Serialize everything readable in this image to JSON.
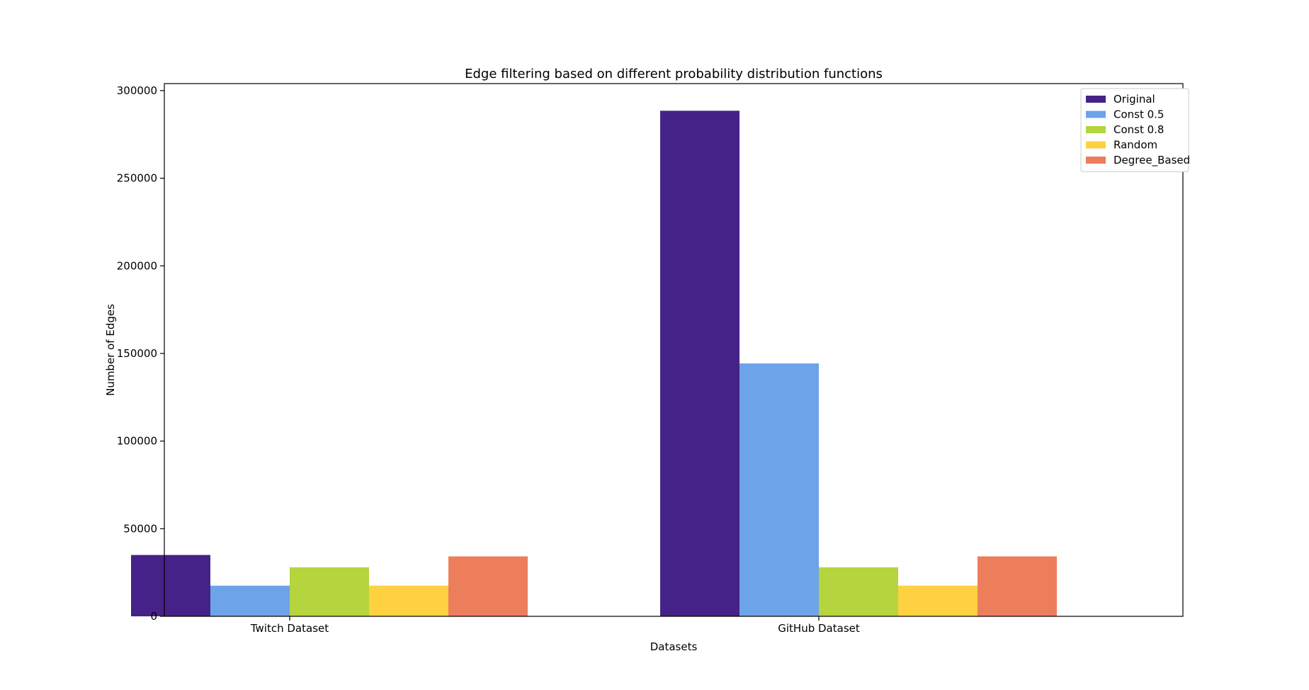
{
  "chart_data": {
    "type": "bar",
    "title": "Edge filtering based on different probability distribution functions",
    "xlabel": "Datasets",
    "ylabel": "Number of Edges",
    "categories": [
      "Twitch Dataset",
      "GitHub Dataset"
    ],
    "ylim": [
      0,
      304000
    ],
    "yticks": [
      0,
      50000,
      100000,
      150000,
      200000,
      250000,
      300000
    ],
    "grid": false,
    "legend_position": "top-right",
    "series": [
      {
        "name": "Original",
        "color": "#452287",
        "values": [
          35000,
          288500
        ]
      },
      {
        "name": "Const 0.5",
        "color": "#6DA3E9",
        "values": [
          17500,
          144300
        ]
      },
      {
        "name": "Const 0.8",
        "color": "#B5D43D",
        "values": [
          28000,
          28000
        ]
      },
      {
        "name": "Random",
        "color": "#FDD13F",
        "values": [
          17500,
          17500
        ]
      },
      {
        "name": "Degree_Based",
        "color": "#EC7E5B",
        "values": [
          34200,
          34200
        ]
      }
    ]
  }
}
